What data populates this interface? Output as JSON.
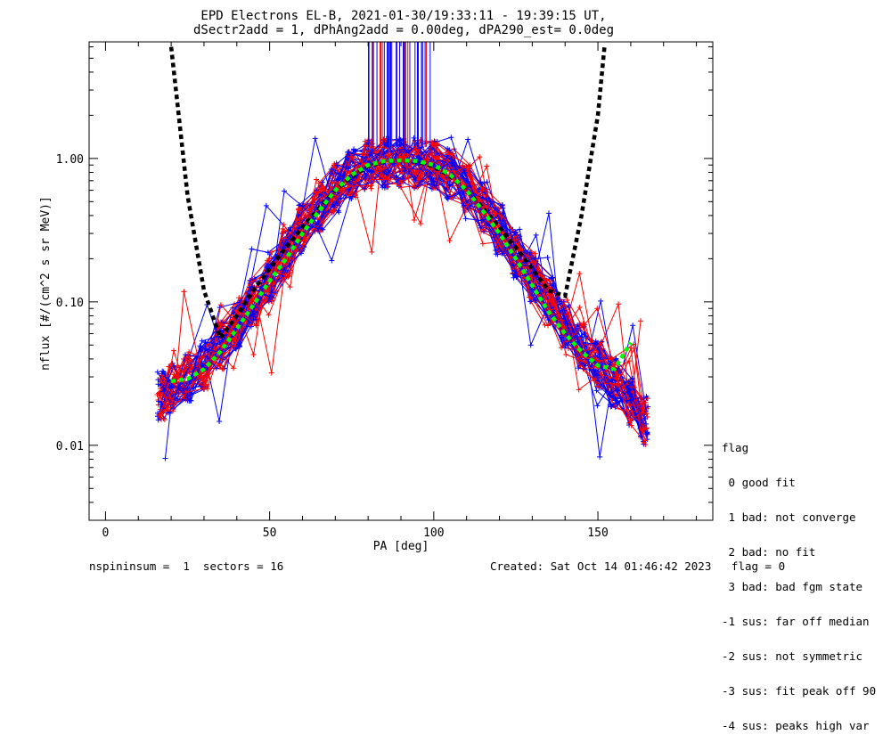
{
  "title": {
    "line1": "EPD Electrons EL-B, 2021-01-30/19:33:11 - 19:39:15 UT,",
    "line2": "dSectr2add = 1, dPhAng2add = 0.00deg, dPA290_est=   0.0deg"
  },
  "footer": {
    "left": "nspininsum =  1  sectors = 16",
    "right": "Created: Sat Oct 14 01:46:42 2023   flag = 0"
  },
  "legend": {
    "title": "flag",
    "items": [
      " 0 good fit",
      " 1 bad: not converge",
      " 2 bad: no fit",
      " 3 bad: bad fgm state",
      "-1 sus: far off median",
      "-2 sus: not symmetric",
      "-3 sus: fit peak off 90",
      "-4 sus: peaks high var"
    ]
  },
  "chart_data": {
    "type": "line",
    "title": "EPD Electrons EL-B, 2021-01-30/19:33:11 - 19:39:15 UT, dSectr2add = 1, dPhAng2add = 0.00deg, dPA290_est=   0.0deg",
    "xlabel": "PA [deg]",
    "ylabel": "nflux [#/(cm^2 s sr MeV)]",
    "xlim": [
      -5,
      185
    ],
    "ylim": [
      0.003,
      6.5
    ],
    "yscale": "log",
    "xticks": [
      "0",
      "50",
      "100",
      "150"
    ],
    "yticks": [
      "0.01",
      "0.10",
      "1.00"
    ],
    "colors": {
      "spin_a": "#ff0000",
      "spin_b": "#0000ff",
      "fit": "#00ff00",
      "model": "#000000"
    },
    "series": [
      {
        "style": "thick-dashed",
        "color": "#000000",
        "x": [
          20,
          25,
          30,
          35,
          40,
          45,
          50,
          55,
          60,
          65,
          70,
          75,
          80,
          85,
          90,
          95,
          100,
          105,
          110,
          115,
          120,
          125,
          130,
          135,
          140,
          145,
          150,
          152
        ],
        "y": [
          6.0,
          0.55,
          0.12,
          0.056,
          0.08,
          0.12,
          0.17,
          0.24,
          0.33,
          0.45,
          0.6,
          0.75,
          0.88,
          0.95,
          0.97,
          0.95,
          0.88,
          0.75,
          0.6,
          0.45,
          0.33,
          0.24,
          0.17,
          0.12,
          0.11,
          0.4,
          2.0,
          6.0
        ]
      },
      {
        "style": "thick-dashed",
        "color": "#00ff00",
        "x": [
          20,
          25,
          30,
          35,
          40,
          45,
          50,
          55,
          60,
          65,
          70,
          75,
          80,
          85,
          90,
          95,
          100,
          105,
          110,
          115,
          120,
          125,
          130,
          135,
          140,
          145,
          150,
          155,
          160
        ],
        "y": [
          0.028,
          0.029,
          0.034,
          0.045,
          0.065,
          0.095,
          0.14,
          0.2,
          0.3,
          0.43,
          0.6,
          0.77,
          0.9,
          0.96,
          0.97,
          0.96,
          0.9,
          0.77,
          0.6,
          0.43,
          0.3,
          0.2,
          0.13,
          0.085,
          0.06,
          0.045,
          0.036,
          0.034,
          0.052
        ]
      }
    ],
    "spectra_pa": [
      17,
      20,
      25,
      30,
      35,
      40,
      45,
      50,
      55,
      60,
      65,
      70,
      75,
      80,
      85,
      90,
      95,
      100,
      105,
      110,
      115,
      120,
      125,
      130,
      135,
      140,
      145,
      150,
      155,
      160,
      164
    ],
    "spectra_median": [
      0.022,
      0.025,
      0.03,
      0.036,
      0.05,
      0.07,
      0.1,
      0.15,
      0.22,
      0.32,
      0.46,
      0.62,
      0.78,
      0.9,
      0.93,
      0.94,
      0.93,
      0.9,
      0.78,
      0.62,
      0.46,
      0.32,
      0.22,
      0.15,
      0.1,
      0.07,
      0.05,
      0.036,
      0.027,
      0.02,
      0.015
    ],
    "spectra_count": 60
  }
}
